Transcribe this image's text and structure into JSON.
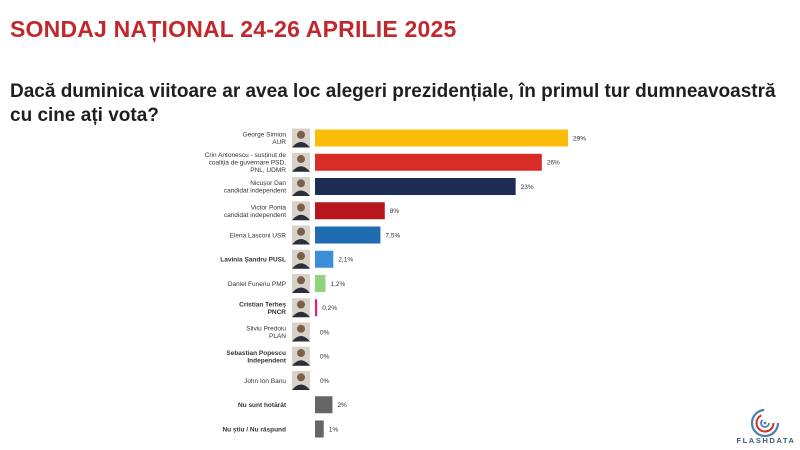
{
  "header": {
    "title": "SONDAJ NAȚIONAL 24-26 APRILIE 2025",
    "question": "Dacă duminica viitoare ar avea loc alegeri prezidențiale, în primul tur dumneavoastră cu cine ați vota?"
  },
  "brand": {
    "name": "FLASHDATA"
  },
  "chart_data": {
    "type": "bar",
    "orientation": "horizontal",
    "grid": false,
    "legend": "none",
    "xlim": [
      0,
      29
    ],
    "categories": [
      [
        "George Simion",
        "AUR"
      ],
      [
        "Crin Antonescu - susținut de",
        "coaliția de guvernare PSD,",
        "PNL, UDMR"
      ],
      [
        "Nicușor Dan",
        "candidat independent"
      ],
      [
        "Victor Ponta",
        "candidat independent"
      ],
      [
        "Elena Lasconi USR"
      ],
      [
        "Lavinia Șandru PUSL"
      ],
      [
        "Daniel Funeriu PMP"
      ],
      [
        "Cristian Terheș",
        "PNCR"
      ],
      [
        "Silviu Predoiu",
        "PLAN"
      ],
      [
        "Sebastian Popescu",
        "Independent"
      ],
      [
        "John Ion Banu"
      ],
      [
        "Nu sunt hotărât"
      ],
      [
        "Nu știu / Nu răspund"
      ]
    ],
    "bold_labels": [
      false,
      false,
      false,
      false,
      false,
      true,
      false,
      true,
      false,
      true,
      false,
      true,
      true
    ],
    "has_photo": [
      true,
      true,
      true,
      true,
      true,
      true,
      true,
      true,
      true,
      true,
      true,
      false,
      false
    ],
    "values": [
      29,
      26,
      23,
      8,
      7.5,
      2.1,
      1.2,
      0.2,
      0,
      0,
      0,
      2,
      1
    ],
    "value_labels": [
      "29%",
      "26%",
      "23%",
      "8%",
      "7,5%",
      "2,1%",
      "1,2%",
      "0,2%",
      "0%",
      "0%",
      "0%",
      "2%",
      "1%"
    ],
    "colors": [
      "#fbbd0a",
      "#d92d27",
      "#1b2d55",
      "#b7161c",
      "#1f6cb3",
      "#3a8fd8",
      "#8fd47c",
      "#e0207a",
      "#cccccc",
      "#cccccc",
      "#cccccc",
      "#666666",
      "#666666"
    ]
  }
}
